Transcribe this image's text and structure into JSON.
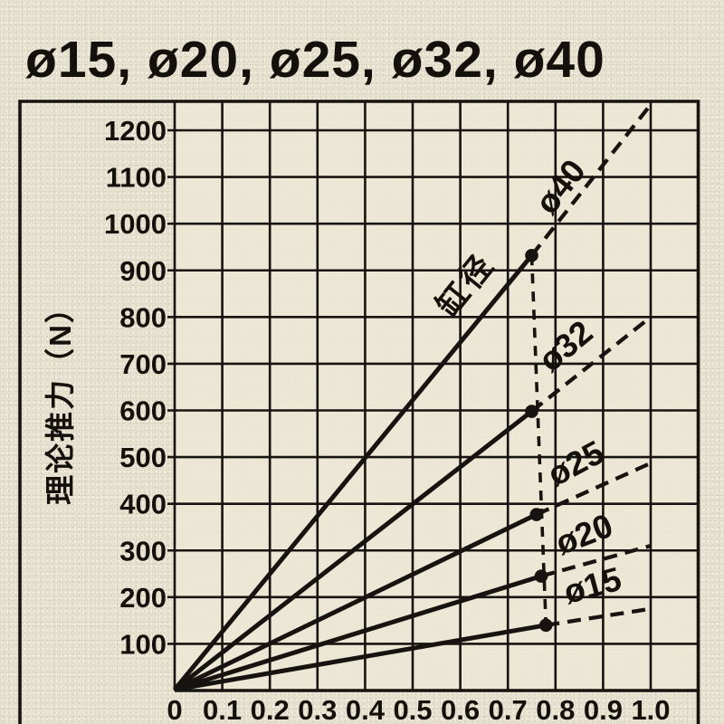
{
  "title": "ø15, ø20, ø25, ø32, ø40",
  "colors": {
    "background": "#e9e3d2",
    "plot_background": "#ede7d5",
    "line": "#171310",
    "text": "#14100c"
  },
  "chart_data": {
    "type": "line",
    "title": "ø15, ø20, ø25, ø32, ø40",
    "xlabel": "",
    "ylabel": "理论推力（N）",
    "x_ticks": [
      "0",
      "0.1",
      "0.2",
      "0.3",
      "0.4",
      "0.5",
      "0.6",
      "0.7",
      "0.8",
      "0.9",
      "1.0"
    ],
    "y_ticks": [
      100,
      200,
      300,
      400,
      500,
      600,
      700,
      800,
      900,
      1000,
      1100,
      1200
    ],
    "xlim": [
      0,
      1.1
    ],
    "ylim": [
      0,
      1262
    ],
    "grid": true,
    "legend_position": "inline-rotated-labels",
    "annotation_label": "缸径",
    "series": [
      {
        "name": "ø15",
        "start": [
          0,
          0
        ],
        "dot": [
          0.78,
          140
        ],
        "dashed_end": [
          1.0,
          175
        ]
      },
      {
        "name": "ø20",
        "start": [
          0,
          0
        ],
        "dot": [
          0.77,
          245
        ],
        "dashed_end": [
          1.0,
          310
        ]
      },
      {
        "name": "ø25",
        "start": [
          0,
          0
        ],
        "dot": [
          0.76,
          377
        ],
        "dashed_end": [
          1.0,
          487
        ]
      },
      {
        "name": "ø32",
        "start": [
          0,
          0
        ],
        "dot": [
          0.75,
          598
        ],
        "dashed_end": [
          1.0,
          800
        ]
      },
      {
        "name": "ø40",
        "start": [
          0,
          0
        ],
        "dot": [
          0.75,
          932
        ],
        "dashed_end": [
          1.0,
          1255
        ]
      }
    ],
    "connector_line": {
      "style": "dashed",
      "from_series": "ø40",
      "to_series": "ø15",
      "at_x": 0.75
    }
  }
}
